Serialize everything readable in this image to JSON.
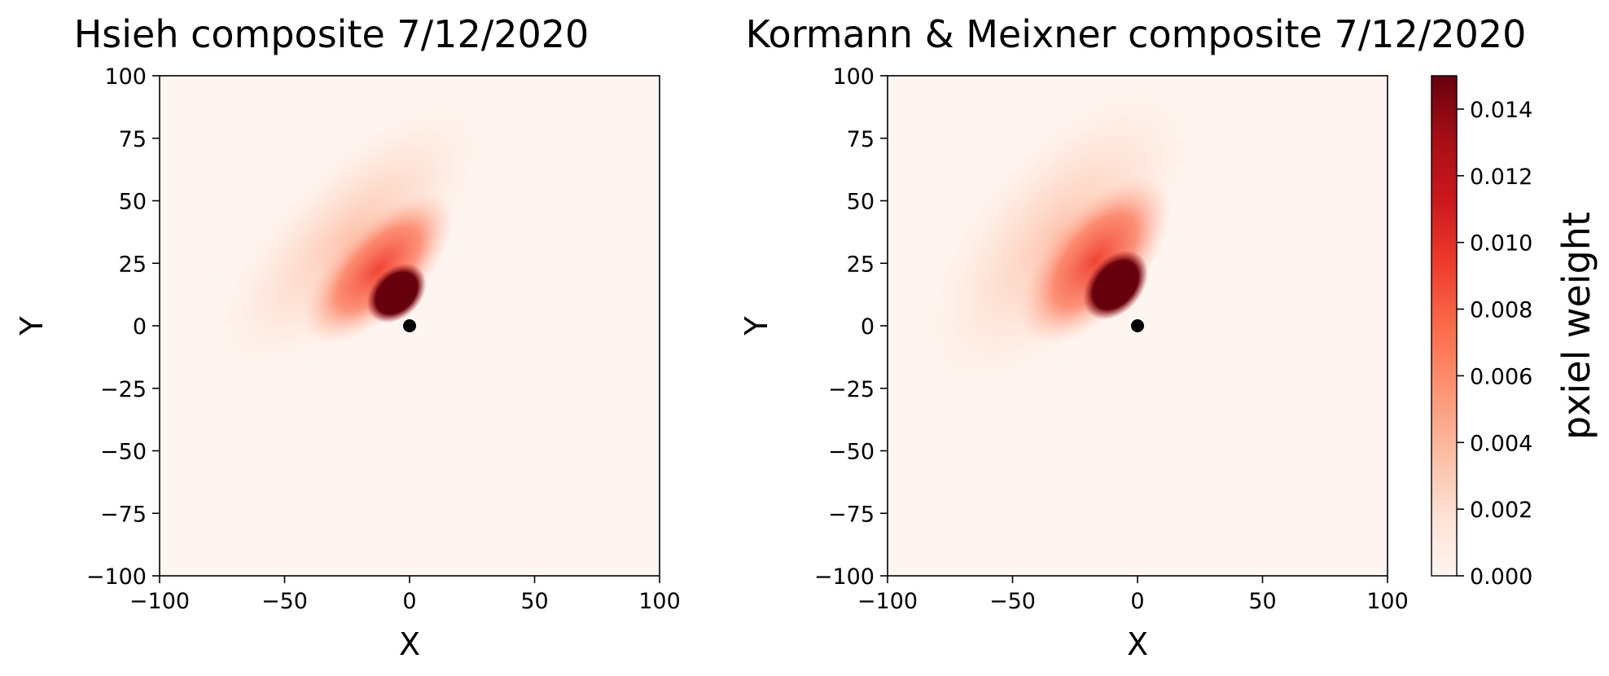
{
  "chart_data": [
    {
      "type": "heatmap",
      "title": "Hsieh composite 7/12/2020",
      "xlabel": "X",
      "ylabel": "Y",
      "xlim": [
        -100,
        100
      ],
      "ylim": [
        -100,
        100
      ],
      "xticks": [
        "−100",
        "−50",
        "0",
        "50",
        "100"
      ],
      "yticks": [
        "100",
        "75",
        "50",
        "25",
        "0",
        "−25",
        "−50",
        "−75",
        "−100"
      ],
      "colormap": "Reds",
      "grid": false,
      "footprint": {
        "peak_x": -8,
        "peak_y": 14,
        "peak_weight": 0.015,
        "direction_deg": 135
      },
      "tower_point": {
        "x": 0,
        "y": 0,
        "color": "#000000"
      }
    },
    {
      "type": "heatmap",
      "title": "Kormann & Meixner composite 7/12/2020",
      "xlabel": "X",
      "ylabel": "Y",
      "xlim": [
        -100,
        100
      ],
      "ylim": [
        -100,
        100
      ],
      "xticks": [
        "−100",
        "−50",
        "0",
        "50",
        "100"
      ],
      "yticks": [
        "100",
        "75",
        "50",
        "25",
        "0",
        "−25",
        "−50",
        "−75",
        "−100"
      ],
      "colormap": "Reds",
      "grid": false,
      "footprint": {
        "peak_x": -11,
        "peak_y": 16,
        "peak_weight": 0.015,
        "direction_deg": 130
      },
      "tower_point": {
        "x": 0,
        "y": 0,
        "color": "#000000"
      }
    }
  ],
  "colorbar": {
    "label": "pxiel weight",
    "min": 0.0,
    "max": 0.015,
    "ticks": [
      "0.000",
      "0.002",
      "0.004",
      "0.006",
      "0.008",
      "0.010",
      "0.012",
      "0.014"
    ],
    "tick_values": [
      0.0,
      0.002,
      0.004,
      0.006,
      0.008,
      0.01,
      0.012,
      0.014
    ],
    "colors": [
      "#fff5f0",
      "#fee0d2",
      "#fcbba1",
      "#fc9272",
      "#fb6a4a",
      "#ef3b2c",
      "#cb181d",
      "#a50f15",
      "#67000d"
    ]
  }
}
